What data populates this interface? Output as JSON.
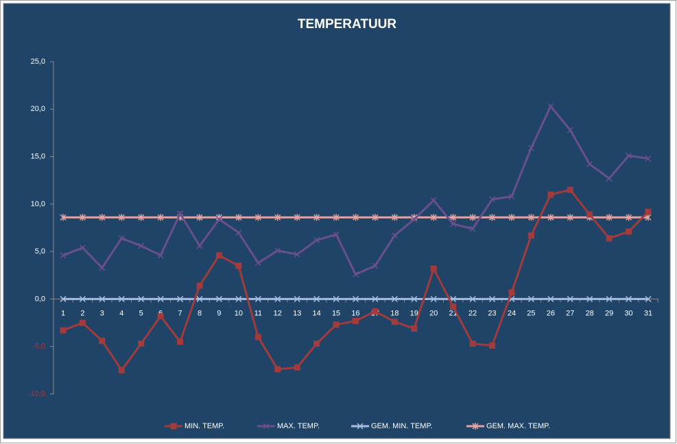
{
  "chart_data": {
    "type": "line",
    "title": "TEMPERATUUR",
    "categories": [
      1,
      2,
      3,
      4,
      5,
      6,
      7,
      8,
      9,
      10,
      11,
      12,
      13,
      14,
      15,
      16,
      17,
      18,
      19,
      20,
      21,
      22,
      23,
      24,
      25,
      26,
      27,
      28,
      29,
      30,
      31
    ],
    "series": [
      {
        "name": "MIN. TEMP.",
        "color": "#a33b3c",
        "marker": "square",
        "values": [
          -3.3,
          -2.5,
          -4.4,
          -7.5,
          -4.7,
          -1.8,
          -4.5,
          1.4,
          4.6,
          3.5,
          -4.0,
          -7.4,
          -7.2,
          -4.7,
          -2.7,
          -2.3,
          -1.3,
          -2.4,
          -3.1,
          3.2,
          -0.8,
          -4.7,
          -4.9,
          0.7,
          6.7,
          11.0,
          11.5,
          8.9,
          6.4,
          7.1,
          9.2
        ]
      },
      {
        "name": "MAX. TEMP.",
        "color": "#6a4f8d",
        "marker": "x",
        "values": [
          4.6,
          5.4,
          3.3,
          6.4,
          5.6,
          4.6,
          9.0,
          5.6,
          8.4,
          7.0,
          3.8,
          5.1,
          4.7,
          6.2,
          6.8,
          2.6,
          3.5,
          6.7,
          8.4,
          10.4,
          7.9,
          7.4,
          10.5,
          10.8,
          15.9,
          20.3,
          17.8,
          14.2,
          12.7,
          15.1,
          14.8
        ]
      },
      {
        "name": "GEM. MIN. TEMP.",
        "color": "#a9bcdf",
        "marker": "x",
        "values": [
          0,
          0,
          0,
          0,
          0,
          0,
          0,
          0,
          0,
          0,
          0,
          0,
          0,
          0,
          0,
          0,
          0,
          0,
          0,
          0,
          0,
          0,
          0,
          0,
          0,
          0,
          0,
          0,
          0,
          0,
          0
        ]
      },
      {
        "name": "GEM. MAX. TEMP.",
        "color": "#e4a4a4",
        "marker": "star",
        "values": [
          8.6,
          8.6,
          8.6,
          8.6,
          8.6,
          8.6,
          8.6,
          8.6,
          8.6,
          8.6,
          8.6,
          8.6,
          8.6,
          8.6,
          8.6,
          8.6,
          8.6,
          8.6,
          8.6,
          8.6,
          8.6,
          8.6,
          8.6,
          8.6,
          8.6,
          8.6,
          8.6,
          8.6,
          8.6,
          8.6,
          8.6
        ]
      }
    ],
    "ylim": [
      -10,
      25
    ],
    "yticks": [
      {
        "value": -10,
        "label": "-10,0"
      },
      {
        "value": -5,
        "label": "-5,0"
      },
      {
        "value": 0,
        "label": "0,0"
      },
      {
        "value": 5,
        "label": "5,0"
      },
      {
        "value": 10,
        "label": "10,0"
      },
      {
        "value": 15,
        "label": "15,0"
      },
      {
        "value": 20,
        "label": "20,0"
      },
      {
        "value": 25,
        "label": "25,0"
      }
    ],
    "negative_tick_color": "#e0202a",
    "background": "#1f4467",
    "legend": "bottom"
  }
}
